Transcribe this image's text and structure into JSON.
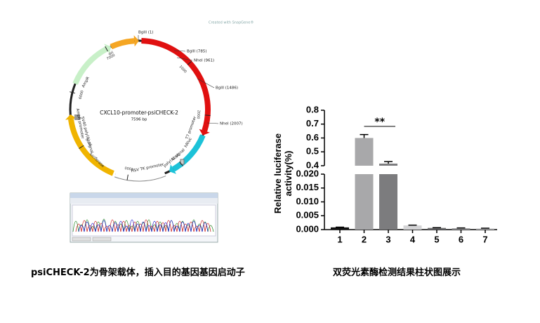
{
  "chart_data": {
    "type": "bar",
    "ylabel": "Relative luciferase activity(%)",
    "categories": [
      "1",
      "2",
      "3",
      "4",
      "5",
      "6",
      "7"
    ],
    "values": [
      0.0008,
      0.6,
      0.415,
      0.0015,
      0.0006,
      0.0005,
      0.0004
    ],
    "errors": [
      0.0001,
      0.025,
      0.015,
      0.0001,
      0.0001,
      0.0001,
      0.0001
    ],
    "colors": [
      "#111111",
      "#a8a8aa",
      "#7c7c7e",
      "#d4d4d6",
      "#6a6a6c",
      "#9a9a9c",
      "#bdbdbf"
    ],
    "segments": [
      {
        "ylim": [
          0,
          0.02
        ],
        "yticks": [
          {
            "value": 0,
            "label": "0.000"
          },
          0.005,
          {
            "value": 0.01,
            "label": "0.010"
          },
          0.015,
          {
            "value": 0.02,
            "label": "0.020"
          }
        ]
      },
      {
        "ylim": [
          0.4,
          0.8
        ],
        "yticks": [
          0.4,
          0.5,
          0.6,
          0.7,
          0.8
        ]
      }
    ],
    "annotations": [
      {
        "text": "**",
        "from": 1,
        "to": 2
      }
    ]
  },
  "plasmid": {
    "name": "CXCL10-promoter-psiCHECK-2",
    "length": 7596,
    "length_label": "7596 bp",
    "credit": "Created with SnapGene®",
    "ring_ticks": [
      1000,
      2000,
      3000,
      4000,
      5000,
      6000,
      7000
    ],
    "sites": [
      "BglII (1)",
      "BglII (785)",
      "NheI (961)",
      "BglII (1486)",
      "NheI (2007)"
    ],
    "features": [
      "CXCL10 promoter",
      "T7 promoter",
      "hRluc",
      "poly(A) signal",
      "HSV TK promoter",
      "luciferase",
      "SV40 poly(A) signal",
      "AmpR promoter",
      "AmpR",
      "ori"
    ]
  },
  "captions": [
    "psiCHECK-2为骨架载体，插入目的基因基因启动子",
    "双荧光素酶检测结果柱状图展示"
  ]
}
